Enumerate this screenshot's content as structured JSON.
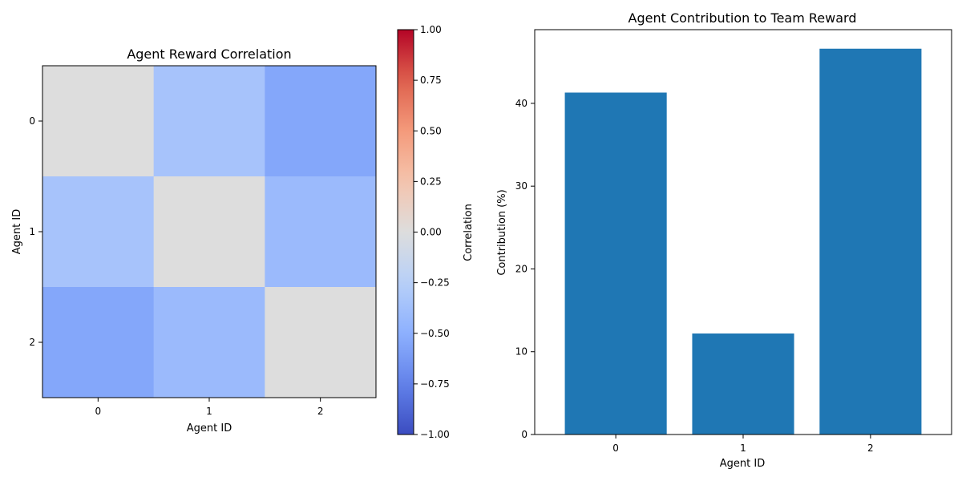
{
  "chart_data": [
    {
      "type": "heatmap",
      "title": "Agent Reward Correlation",
      "xlabel": "Agent ID",
      "ylabel": "Agent ID",
      "x_categories": [
        "0",
        "1",
        "2"
      ],
      "y_categories": [
        "0",
        "1",
        "2"
      ],
      "values": [
        [
          0.0,
          -0.35,
          -0.55
        ],
        [
          -0.35,
          0.0,
          -0.42
        ],
        [
          -0.55,
          -0.42,
          0.0
        ]
      ],
      "colormap": "coolwarm",
      "vmin": -1.0,
      "vmax": 1.0,
      "colorbar": {
        "label": "Correlation",
        "ticks": [
          -1.0,
          -0.75,
          -0.5,
          -0.25,
          0.0,
          0.25,
          0.5,
          0.75,
          1.0
        ],
        "tick_labels": [
          "−1.00",
          "−0.75",
          "−0.50",
          "−0.25",
          "0.00",
          "0.25",
          "0.50",
          "0.75",
          "1.00"
        ]
      }
    },
    {
      "type": "bar",
      "title": "Agent Contribution to Team Reward",
      "xlabel": "Agent ID",
      "ylabel": "Contribution (%)",
      "categories": [
        "0",
        "1",
        "2"
      ],
      "values": [
        41.3,
        12.2,
        46.6
      ],
      "ylim": [
        0,
        48.9
      ],
      "y_ticks": [
        0,
        10,
        20,
        30,
        40
      ],
      "bar_color": "#1f77b4",
      "grid": false
    }
  ]
}
